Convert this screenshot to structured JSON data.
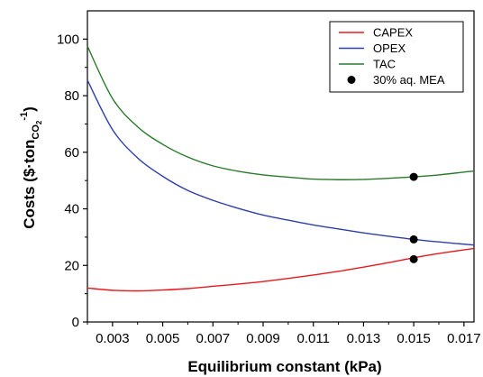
{
  "chart_data": {
    "type": "line",
    "xlabel": "Equilibrium constant (kPa)",
    "ylabel": {
      "main": "Costs ($·ton",
      "sub": "CO",
      "subsub": "2",
      "sup": "-1",
      "close": ")"
    },
    "xlim": [
      0.002,
      0.0174
    ],
    "ylim": [
      0,
      110
    ],
    "xticks": [
      0.003,
      0.005,
      0.007,
      0.009,
      0.011,
      0.013,
      0.015,
      0.017
    ],
    "xtick_labels": [
      "0.003",
      "0.005",
      "0.007",
      "0.009",
      "0.011",
      "0.013",
      "0.015",
      "0.017"
    ],
    "yticks": [
      0,
      20,
      40,
      60,
      80,
      100
    ],
    "ytick_labels": [
      "0",
      "20",
      "40",
      "60",
      "80",
      "100"
    ],
    "legend_position": "top-right",
    "series": [
      {
        "name": "CAPEX",
        "color": "#e8191c",
        "x": [
          0.002,
          0.003,
          0.004,
          0.005,
          0.006,
          0.007,
          0.008,
          0.009,
          0.01,
          0.011,
          0.012,
          0.013,
          0.014,
          0.015,
          0.016,
          0.0174
        ],
        "y": [
          12.0,
          11.2,
          11.0,
          11.3,
          11.8,
          12.6,
          13.4,
          14.3,
          15.4,
          16.6,
          17.9,
          19.4,
          21.0,
          22.7,
          24.2,
          26.0
        ]
      },
      {
        "name": "OPEX",
        "color": "#2e3fa8",
        "x": [
          0.002,
          0.003,
          0.004,
          0.005,
          0.006,
          0.007,
          0.008,
          0.009,
          0.01,
          0.011,
          0.012,
          0.013,
          0.014,
          0.015,
          0.016,
          0.0174
        ],
        "y": [
          85.5,
          68.0,
          58.0,
          51.5,
          46.5,
          43.0,
          40.2,
          37.8,
          36.0,
          34.3,
          32.9,
          31.5,
          30.3,
          29.2,
          28.3,
          27.2
        ]
      },
      {
        "name": "TAC",
        "color": "#2a7a2c",
        "x": [
          0.002,
          0.003,
          0.004,
          0.005,
          0.006,
          0.007,
          0.008,
          0.009,
          0.01,
          0.011,
          0.012,
          0.013,
          0.014,
          0.015,
          0.016,
          0.0174
        ],
        "y": [
          97.5,
          79.0,
          69.0,
          62.8,
          58.3,
          55.2,
          53.3,
          52.0,
          51.2,
          50.5,
          50.3,
          50.4,
          50.8,
          51.3,
          52.0,
          53.4
        ]
      }
    ],
    "markers": {
      "name": "30% aq. MEA",
      "color": "#000000",
      "x": [
        0.015,
        0.015,
        0.015
      ],
      "y": [
        51.3,
        29.2,
        22.2
      ]
    }
  }
}
